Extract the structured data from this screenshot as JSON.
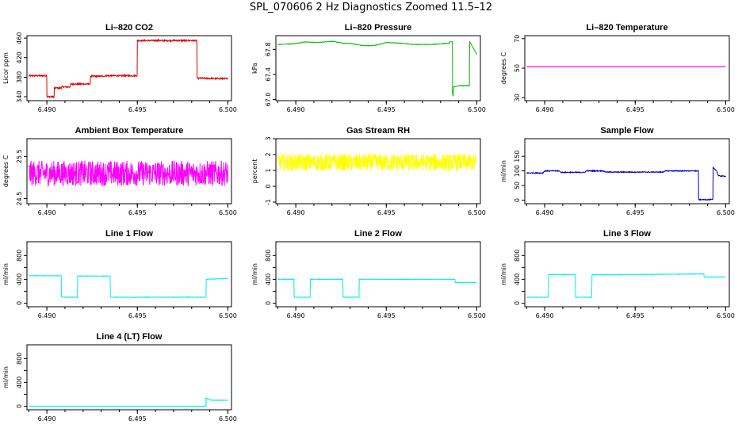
{
  "page_title": "SPL_070606  2 Hz Diagnostics Zoomed 11.5–12",
  "colors": {
    "co2": "#dd0000",
    "pressure": "#00bb00",
    "temperature": "#ff00ff",
    "box_temp": "#ff00ff",
    "rh": "#ffff00",
    "sample_flow": "#0000bb",
    "line_flow": "#00eeee"
  },
  "chart_data": [
    {
      "id": "co2",
      "type": "line",
      "title": "Li–820 CO2",
      "ylabel": "Licor ppm",
      "color_key": "co2",
      "noise": 1.5,
      "xlim": [
        6.4889,
        6.5002
      ],
      "ylim": [
        332,
        465
      ],
      "xticks": [
        6.49,
        6.495,
        6.5
      ],
      "xticklabels": [
        "6.490",
        "6.495",
        "6.500"
      ],
      "yticks": [
        340,
        380,
        420,
        460
      ],
      "yticklabels": [
        "340",
        "380",
        "420",
        "460"
      ],
      "x": [
        6.489,
        6.4898,
        6.4898,
        6.49,
        6.49,
        6.4904,
        6.4904,
        6.4908,
        6.4908,
        6.4913,
        6.4913,
        6.4924,
        6.4924,
        6.4932,
        6.4932,
        6.495,
        6.495,
        6.4983,
        6.4983,
        6.5
      ],
      "y": [
        383,
        383,
        383,
        383,
        340,
        340,
        358,
        358,
        360,
        360,
        366,
        366,
        382,
        382,
        383,
        383,
        455,
        455,
        378,
        377
      ]
    },
    {
      "id": "pressure",
      "type": "line",
      "title": "Li–820 Pressure",
      "ylabel": "kPa",
      "color_key": "pressure",
      "noise": 0.004,
      "xlim": [
        6.4889,
        6.5002
      ],
      "ylim": [
        66.98,
        68.02
      ],
      "xticks": [
        6.49,
        6.495,
        6.5
      ],
      "xticklabels": [
        "6.490",
        "6.495",
        "6.500"
      ],
      "yticks": [
        67.0,
        67.4,
        67.8
      ],
      "yticklabels": [
        "67.0",
        "67.4",
        "67.8"
      ],
      "x": [
        6.489,
        6.4899,
        6.4905,
        6.4912,
        6.492,
        6.4926,
        6.4932,
        6.4937,
        6.4943,
        6.495,
        6.4958,
        6.4965,
        6.4975,
        6.4985,
        6.4985,
        6.49865,
        6.49865,
        6.4987,
        6.4987,
        6.499,
        6.499,
        6.4996,
        6.4996,
        6.5
      ],
      "y": [
        67.88,
        67.89,
        67.92,
        67.91,
        67.93,
        67.9,
        67.89,
        67.86,
        67.86,
        67.91,
        67.9,
        67.88,
        67.88,
        67.9,
        67.92,
        67.92,
        67.1,
        67.05,
        67.2,
        67.22,
        67.22,
        67.22,
        67.93,
        67.72
      ]
    },
    {
      "id": "temperature",
      "type": "line",
      "title": "Li–820 Temperature",
      "ylabel": "degrees C",
      "color_key": "temperature",
      "noise": 0,
      "xlim": [
        6.4889,
        6.5002
      ],
      "ylim": [
        28,
        72
      ],
      "xticks": [
        6.49,
        6.495,
        6.5
      ],
      "xticklabels": [
        "6.490",
        "6.495",
        "6.500"
      ],
      "yticks": [
        30,
        50,
        70
      ],
      "yticklabels": [
        "30",
        "50",
        "70"
      ],
      "x": [
        6.489,
        6.5
      ],
      "y": [
        51,
        51
      ]
    },
    {
      "id": "box_temp",
      "type": "line",
      "title": "Ambient Box Temperature",
      "ylabel": "degrees C",
      "color_key": "box_temp",
      "noise": 0.3,
      "xlim": [
        6.4889,
        6.5002
      ],
      "ylim": [
        24.38,
        25.92
      ],
      "xticks": [
        6.49,
        6.495,
        6.5
      ],
      "xticklabels": [
        "6.490",
        "6.495",
        "6.500"
      ],
      "yticks": [
        24.5,
        25.5
      ],
      "yticklabels": [
        "24.5",
        "25.5"
      ],
      "x": [
        6.489,
        6.5
      ],
      "y": [
        25.1,
        25.1
      ]
    },
    {
      "id": "rh",
      "type": "line",
      "title": "Gas Stream RH",
      "ylabel": "percent",
      "color_key": "rh",
      "noise": 0.55,
      "xlim": [
        6.4889,
        6.5002
      ],
      "ylim": [
        -1.1,
        3.0
      ],
      "xticks": [
        6.49,
        6.495,
        6.5
      ],
      "xticklabels": [
        "6.490",
        "6.495",
        "6.500"
      ],
      "yticks": [
        -1,
        0,
        1,
        2,
        3
      ],
      "yticklabels": [
        "-1",
        "0",
        "1",
        "2",
        "3"
      ],
      "x": [
        6.489,
        6.5
      ],
      "y": [
        1.5,
        1.5
      ]
    },
    {
      "id": "sample_flow",
      "type": "line",
      "title": "Sample Flow",
      "ylabel": "ml/min",
      "color_key": "sample_flow",
      "noise": 1.5,
      "xlim": [
        6.4889,
        6.5002
      ],
      "ylim": [
        -12,
        210
      ],
      "xticks": [
        6.49,
        6.495,
        6.5
      ],
      "xticklabels": [
        "6.490",
        "6.495",
        "6.500"
      ],
      "yticks": [
        0,
        50,
        100,
        150
      ],
      "yticklabels": [
        "0",
        "50",
        "100",
        "150"
      ],
      "x": [
        6.489,
        6.4899,
        6.49,
        6.4908,
        6.4909,
        6.4922,
        6.4923,
        6.4932,
        6.4934,
        6.4965,
        6.4967,
        6.4985,
        6.4985,
        6.4993,
        6.4993,
        6.4995,
        6.4996,
        6.5
      ],
      "y": [
        93,
        93,
        100,
        100,
        95,
        95,
        100,
        100,
        96,
        96,
        100,
        100,
        2,
        2,
        112,
        100,
        83,
        82
      ]
    },
    {
      "id": "line1",
      "type": "line",
      "title": "Line 1 Flow",
      "ylabel": "ml/min",
      "color_key": "line_flow",
      "noise": 4,
      "xlim": [
        6.4889,
        6.5002
      ],
      "ylim": [
        -60,
        1030
      ],
      "xticks": [
        6.49,
        6.495,
        6.5
      ],
      "xticklabels": [
        "6.490",
        "6.495",
        "6.500"
      ],
      "yticks": [
        0,
        200,
        400,
        600,
        800
      ],
      "yticklabels": [
        "0",
        "",
        "400",
        "",
        "800"
      ],
      "x": [
        6.489,
        6.4908,
        6.4908,
        6.4917,
        6.4917,
        6.4935,
        6.4935,
        6.4988,
        6.4988,
        6.5
      ],
      "y": [
        460,
        460,
        100,
        100,
        455,
        455,
        100,
        100,
        400,
        415
      ]
    },
    {
      "id": "line2",
      "type": "line",
      "title": "Line 2 Flow",
      "ylabel": "ml/min",
      "color_key": "line_flow",
      "noise": 4,
      "xlim": [
        6.4889,
        6.5002
      ],
      "ylim": [
        -60,
        1030
      ],
      "xticks": [
        6.49,
        6.495,
        6.5
      ],
      "xticklabels": [
        "6.490",
        "6.495",
        "6.500"
      ],
      "yticks": [
        0,
        200,
        400,
        600,
        800
      ],
      "yticklabels": [
        "0",
        "",
        "400",
        "",
        "800"
      ],
      "x": [
        6.489,
        6.4899,
        6.4899,
        6.4908,
        6.4908,
        6.4926,
        6.4926,
        6.4935,
        6.4935,
        6.4988,
        6.4988,
        6.5
      ],
      "y": [
        400,
        400,
        100,
        100,
        400,
        400,
        100,
        100,
        400,
        400,
        345,
        345
      ]
    },
    {
      "id": "line3",
      "type": "line",
      "title": "Line 3 Flow",
      "ylabel": "ml/min",
      "color_key": "line_flow",
      "noise": 4,
      "xlim": [
        6.4889,
        6.5002
      ],
      "ylim": [
        -60,
        1030
      ],
      "xticks": [
        6.49,
        6.495,
        6.5
      ],
      "xticklabels": [
        "6.490",
        "6.495",
        "6.500"
      ],
      "yticks": [
        0,
        200,
        400,
        600,
        800
      ],
      "yticklabels": [
        "0",
        "",
        "400",
        "",
        "800"
      ],
      "x": [
        6.489,
        6.4902,
        6.4902,
        6.4917,
        6.4917,
        6.4926,
        6.4926,
        6.4988,
        6.4988,
        6.5
      ],
      "y": [
        100,
        100,
        480,
        480,
        100,
        100,
        475,
        490,
        440,
        440
      ]
    },
    {
      "id": "line4",
      "type": "line",
      "title": "Line 4 (LT) Flow",
      "ylabel": "ml/min",
      "color_key": "line_flow",
      "noise": 0,
      "xlim": [
        6.4889,
        6.5002
      ],
      "ylim": [
        -60,
        1030
      ],
      "xticks": [
        6.49,
        6.495,
        6.5
      ],
      "xticklabels": [
        "6.490",
        "6.495",
        "6.500"
      ],
      "yticks": [
        0,
        200,
        400,
        600,
        800
      ],
      "yticklabels": [
        "0",
        "",
        "400",
        "",
        "800"
      ],
      "x": [
        6.489,
        6.4988,
        6.4988,
        6.4991,
        6.5
      ],
      "y": [
        0,
        0,
        140,
        100,
        100
      ]
    }
  ]
}
